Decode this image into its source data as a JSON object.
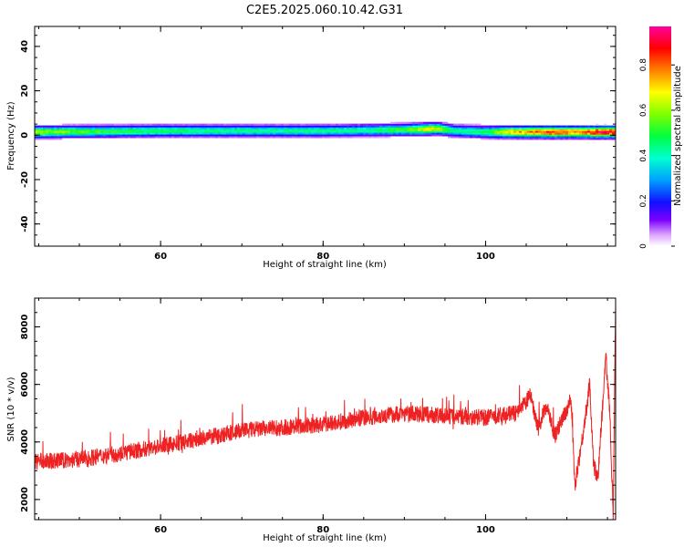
{
  "title": "C2E5.2025.060.10.42.G31",
  "chart_data": [
    {
      "type": "heatmap",
      "xlabel": "Height of straight line (km)",
      "ylabel": "Frequency (Hz)",
      "xlim": [
        44.5,
        116
      ],
      "ylim": [
        -50,
        49
      ],
      "xticks": [
        60,
        80,
        100
      ],
      "yticks": [
        -40,
        -20,
        0,
        20,
        40
      ],
      "colorbar": {
        "label": "Normalized spectral amplitude",
        "range": [
          0,
          0.97
        ],
        "ticks": [
          0,
          0.2,
          0.4,
          0.6,
          0.8
        ]
      },
      "band": {
        "center_frequency": [
          {
            "x": 44.5,
            "f": 1.5
          },
          {
            "x": 60,
            "f": 2
          },
          {
            "x": 80,
            "f": 2
          },
          {
            "x": 90,
            "f": 2.5
          },
          {
            "x": 94,
            "f": 3
          },
          {
            "x": 96,
            "f": 2
          },
          {
            "x": 100,
            "f": 1.5
          },
          {
            "x": 116,
            "f": 1.5
          }
        ],
        "amplitude": [
          {
            "x": 44.5,
            "a": 0.62
          },
          {
            "x": 55,
            "a": 0.5
          },
          {
            "x": 70,
            "a": 0.45
          },
          {
            "x": 85,
            "a": 0.45
          },
          {
            "x": 90,
            "a": 0.55
          },
          {
            "x": 93,
            "a": 0.72
          },
          {
            "x": 96,
            "a": 0.45
          },
          {
            "x": 100,
            "a": 0.5
          },
          {
            "x": 102,
            "a": 0.7
          },
          {
            "x": 105,
            "a": 0.78
          },
          {
            "x": 108,
            "a": 0.88
          },
          {
            "x": 111,
            "a": 0.8
          },
          {
            "x": 114,
            "a": 0.95
          },
          {
            "x": 116,
            "a": 0.9
          }
        ]
      }
    },
    {
      "type": "line",
      "xlabel": "Height of straight line (km)",
      "ylabel": "SNR (10 * v/v)",
      "xlim": [
        44.5,
        116
      ],
      "ylim": [
        1300,
        9000
      ],
      "xticks": [
        60,
        80,
        100
      ],
      "yticks": [
        2000,
        4000,
        6000,
        8000
      ],
      "series": [
        {
          "color": "#ee2222",
          "trend": [
            {
              "x": 44.5,
              "y": 3300
            },
            {
              "x": 50,
              "y": 3400
            },
            {
              "x": 55,
              "y": 3600
            },
            {
              "x": 60,
              "y": 3850
            },
            {
              "x": 65,
              "y": 4100
            },
            {
              "x": 70,
              "y": 4400
            },
            {
              "x": 75,
              "y": 4500
            },
            {
              "x": 80,
              "y": 4600
            },
            {
              "x": 85,
              "y": 4850
            },
            {
              "x": 90,
              "y": 5000
            },
            {
              "x": 95,
              "y": 4900
            },
            {
              "x": 100,
              "y": 4850
            },
            {
              "x": 104,
              "y": 5000
            },
            {
              "x": 105.5,
              "y": 5600
            },
            {
              "x": 106.5,
              "y": 4500
            },
            {
              "x": 107.5,
              "y": 5300
            },
            {
              "x": 108.5,
              "y": 4200
            },
            {
              "x": 109.5,
              "y": 4800
            },
            {
              "x": 110.5,
              "y": 5500
            },
            {
              "x": 111,
              "y": 2500
            },
            {
              "x": 112,
              "y": 4300
            },
            {
              "x": 112.8,
              "y": 6000
            },
            {
              "x": 113.3,
              "y": 3200
            },
            {
              "x": 113.8,
              "y": 2700
            },
            {
              "x": 114.8,
              "y": 7000
            },
            {
              "x": 115.3,
              "y": 5000
            },
            {
              "x": 115.7,
              "y": 1400
            },
            {
              "x": 116,
              "y": 9000
            }
          ],
          "noise_amplitude": 450
        }
      ]
    }
  ]
}
